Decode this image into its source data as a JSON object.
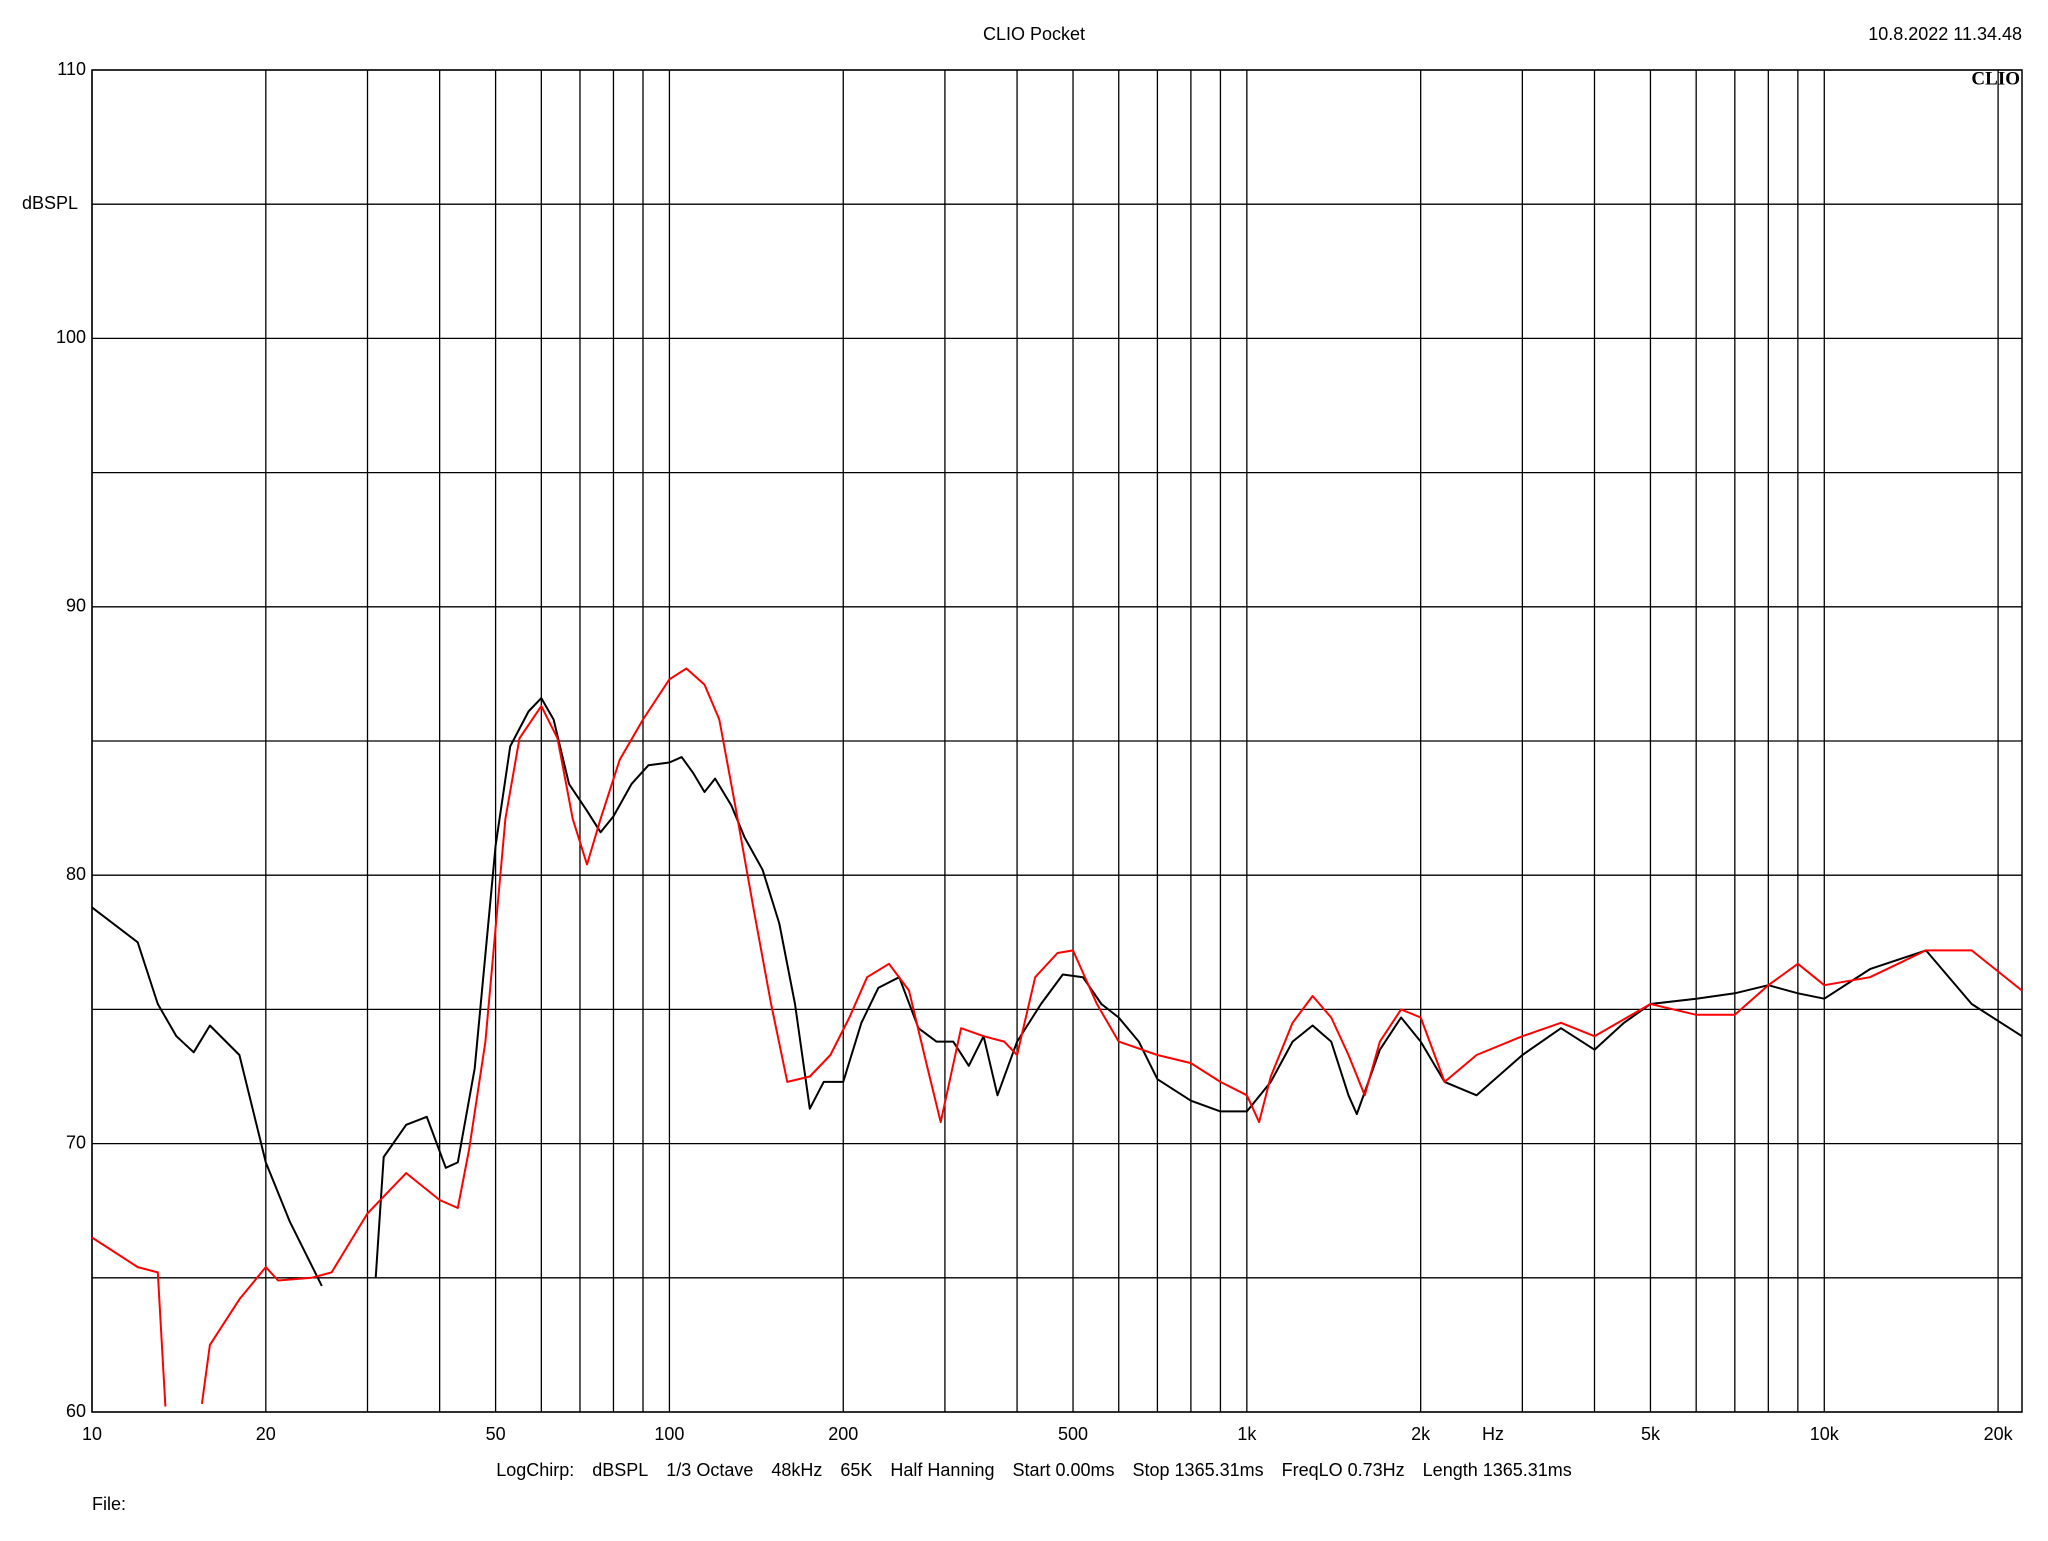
{
  "chart_data": {
    "type": "line",
    "title": "CLIO Pocket",
    "timestamp": "10.8.2022 11.34.48",
    "logo": "CLIO",
    "ylabel": "dBSPL",
    "xlabel": "Hz",
    "settings": [
      "LogChirp:",
      "dBSPL",
      "1/3 Octave",
      "48kHz",
      "65K",
      "Half Hanning",
      "Start 0.00ms",
      "Stop 1365.31ms",
      "FreqLO 0.73Hz",
      "Length 1365.31ms"
    ],
    "file_label": "File:",
    "xscale": "log",
    "grid": true,
    "xlim": [
      10,
      22000
    ],
    "ylim": [
      60,
      110
    ],
    "xticks": [
      10,
      20,
      50,
      100,
      200,
      500,
      {
        "value": 1000,
        "label": "1k"
      },
      {
        "value": 2000,
        "label": "2k"
      },
      {
        "value": 5000,
        "label": "5k"
      },
      {
        "value": 10000,
        "label": "10k"
      },
      {
        "value": 20000,
        "label": "20k"
      }
    ],
    "xgrid": [
      30,
      40,
      60,
      70,
      80,
      90,
      300,
      400,
      600,
      700,
      800,
      900,
      3000,
      4000,
      6000,
      7000,
      8000,
      9000
    ],
    "yticks": [
      60,
      70,
      80,
      90,
      100,
      110
    ],
    "ygrid": [
      65,
      75,
      85,
      95,
      105
    ],
    "series": [
      {
        "color": "#000000",
        "x": [
          10,
          12,
          13,
          14,
          15,
          16,
          18,
          20,
          22,
          25,
          28,
          31,
          32,
          35,
          38,
          41,
          43,
          46,
          50,
          53,
          57,
          60,
          63,
          67,
          72,
          76,
          80,
          86,
          92,
          100,
          105,
          110,
          115,
          120,
          128,
          135,
          145,
          155,
          165,
          175,
          185,
          200,
          215,
          230,
          250,
          270,
          290,
          310,
          330,
          350,
          370,
          400,
          440,
          480,
          520,
          560,
          600,
          650,
          700,
          800,
          900,
          1000,
          1100,
          1200,
          1300,
          1400,
          1500,
          1550,
          1700,
          1850,
          2000,
          2200,
          2500,
          3000,
          3500,
          4000,
          4500,
          5000,
          6000,
          7000,
          8000,
          9000,
          10000,
          12000,
          15000,
          18000,
          22000
        ],
        "values": [
          78.8,
          77.5,
          75.2,
          74.0,
          73.4,
          74.4,
          73.3,
          69.3,
          67.1,
          64.7,
          null,
          65,
          69.5,
          70.7,
          71.0,
          69.1,
          69.3,
          72.8,
          81.1,
          84.8,
          86.1,
          86.6,
          85.8,
          83.4,
          82.4,
          81.6,
          82.2,
          83.4,
          84.1,
          84.2,
          84.4,
          83.8,
          83.1,
          83.6,
          82.6,
          81.4,
          80.2,
          78.2,
          75.2,
          71.3,
          72.3,
          72.3,
          74.5,
          75.8,
          76.2,
          74.3,
          73.8,
          73.8,
          72.9,
          74.0,
          71.8,
          73.8,
          75.2,
          76.3,
          76.2,
          75.2,
          74.7,
          73.8,
          72.4,
          71.6,
          71.2,
          71.2,
          72.3,
          73.8,
          74.4,
          73.8,
          71.8,
          71.1,
          73.5,
          74.7,
          73.8,
          72.3,
          71.8,
          73.3,
          74.3,
          73.5,
          74.5,
          75.2,
          75.4,
          75.6,
          75.9,
          75.6,
          75.4,
          76.5,
          77.2,
          75.2,
          74.0
        ]
      },
      {
        "color": "#ff0000",
        "x": [
          10,
          12,
          13,
          13.4,
          14.5,
          15.5,
          16,
          18,
          20,
          21,
          24,
          26,
          30,
          35,
          40,
          43,
          45,
          48,
          52,
          55,
          60,
          64,
          68,
          72,
          76,
          82,
          90,
          100,
          107,
          115,
          122,
          130,
          140,
          150,
          160,
          175,
          190,
          205,
          220,
          240,
          260,
          280,
          295,
          320,
          350,
          380,
          400,
          430,
          470,
          500,
          550,
          600,
          700,
          800,
          900,
          1000,
          1050,
          1100,
          1200,
          1300,
          1400,
          1500,
          1600,
          1700,
          1850,
          2000,
          2200,
          2500,
          3000,
          3500,
          4000,
          5000,
          6000,
          7000,
          8000,
          9000,
          10000,
          12000,
          15000,
          18000,
          22000
        ],
        "values": [
          66.5,
          65.4,
          65.2,
          60.2,
          null,
          60.3,
          62.5,
          64.2,
          65.4,
          64.9,
          65.0,
          65.2,
          67.4,
          68.9,
          67.9,
          67.6,
          69.8,
          73.8,
          82.1,
          85.1,
          86.3,
          85.1,
          82.1,
          80.4,
          82.1,
          84.3,
          85.8,
          87.3,
          87.7,
          87.1,
          85.8,
          82.6,
          78.7,
          75.2,
          72.3,
          72.5,
          73.3,
          74.7,
          76.2,
          76.7,
          75.7,
          72.8,
          70.8,
          74.3,
          74.0,
          73.8,
          73.3,
          76.2,
          77.1,
          77.2,
          75.2,
          73.8,
          73.3,
          73.0,
          72.3,
          71.8,
          70.8,
          72.5,
          74.5,
          75.5,
          74.7,
          73.3,
          71.8,
          73.8,
          75.0,
          74.7,
          72.3,
          73.3,
          74.0,
          74.5,
          74.0,
          75.2,
          74.8,
          74.8,
          75.9,
          76.7,
          75.9,
          76.2,
          77.2,
          77.2,
          75.7
        ]
      }
    ]
  }
}
